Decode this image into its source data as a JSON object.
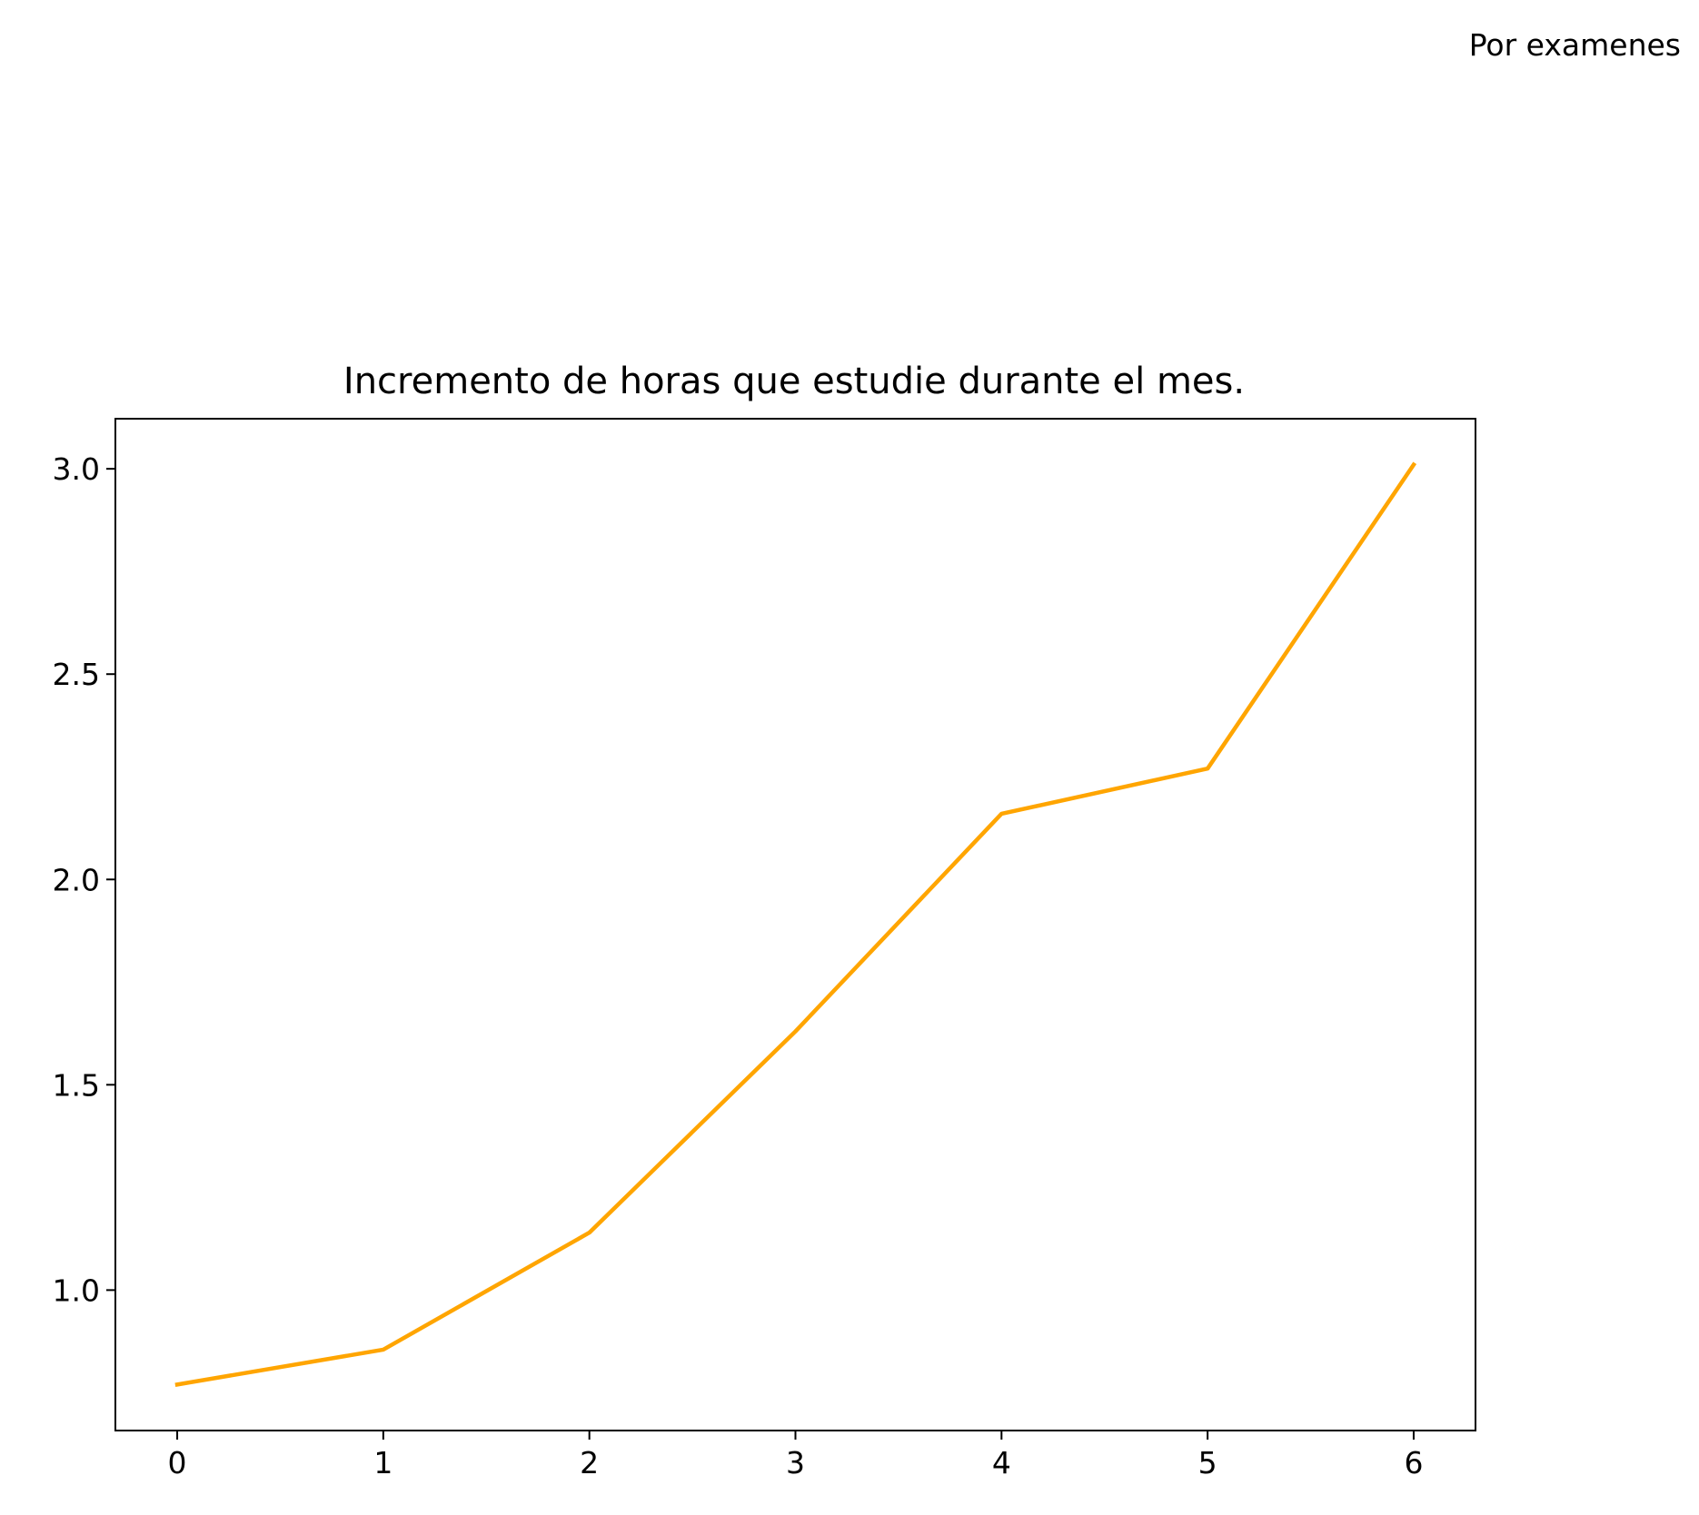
{
  "chart_data": {
    "type": "line",
    "title": "Incremento de horas que estudie durante el mes.",
    "annotation": "Por examenes",
    "x": [
      0,
      1,
      2,
      3,
      4,
      5,
      6
    ],
    "series": [
      {
        "values": [
          0.77,
          0.855,
          1.14,
          1.63,
          2.16,
          2.27,
          3.01
        ],
        "color": "#ffa500"
      }
    ],
    "xticks": [
      "0",
      "1",
      "2",
      "3",
      "4",
      "5",
      "6"
    ],
    "yticks": [
      "1.0",
      "1.5",
      "2.0",
      "2.5",
      "3.0"
    ],
    "xlim": [
      -0.3,
      6.3
    ],
    "ylim": [
      0.658,
      3.122
    ],
    "grid": false,
    "legend": false
  }
}
